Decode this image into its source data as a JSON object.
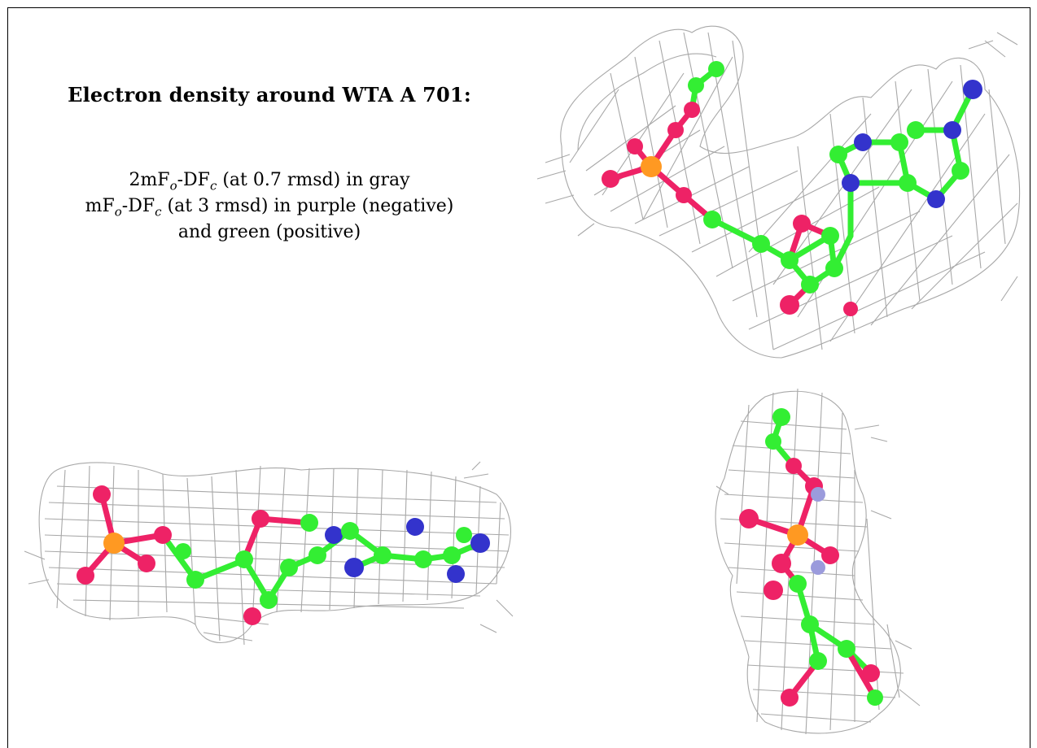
{
  "title": "Electron density around WTA A 701:",
  "legend": {
    "line1": {
      "prefix": "2mF",
      "o": "o",
      "mid": "-DF",
      "c": "c",
      "suffix": " (at 0.7 rmsd) in gray"
    },
    "line2": {
      "prefix": "mF",
      "o": "o",
      "mid": "-DF",
      "c": "c",
      "suffix": " (at 3 rmsd) in purple (negative)"
    },
    "line3": "and green (positive)"
  },
  "colors": {
    "mesh": "#a8a8a8",
    "carbon": "#33ee33",
    "oxygen": "#ee2266",
    "nitrogen": "#3333cc",
    "phosphorus": "#ff9922"
  },
  "panels": [
    "view-top-right",
    "view-bottom-left",
    "view-bottom-right"
  ]
}
